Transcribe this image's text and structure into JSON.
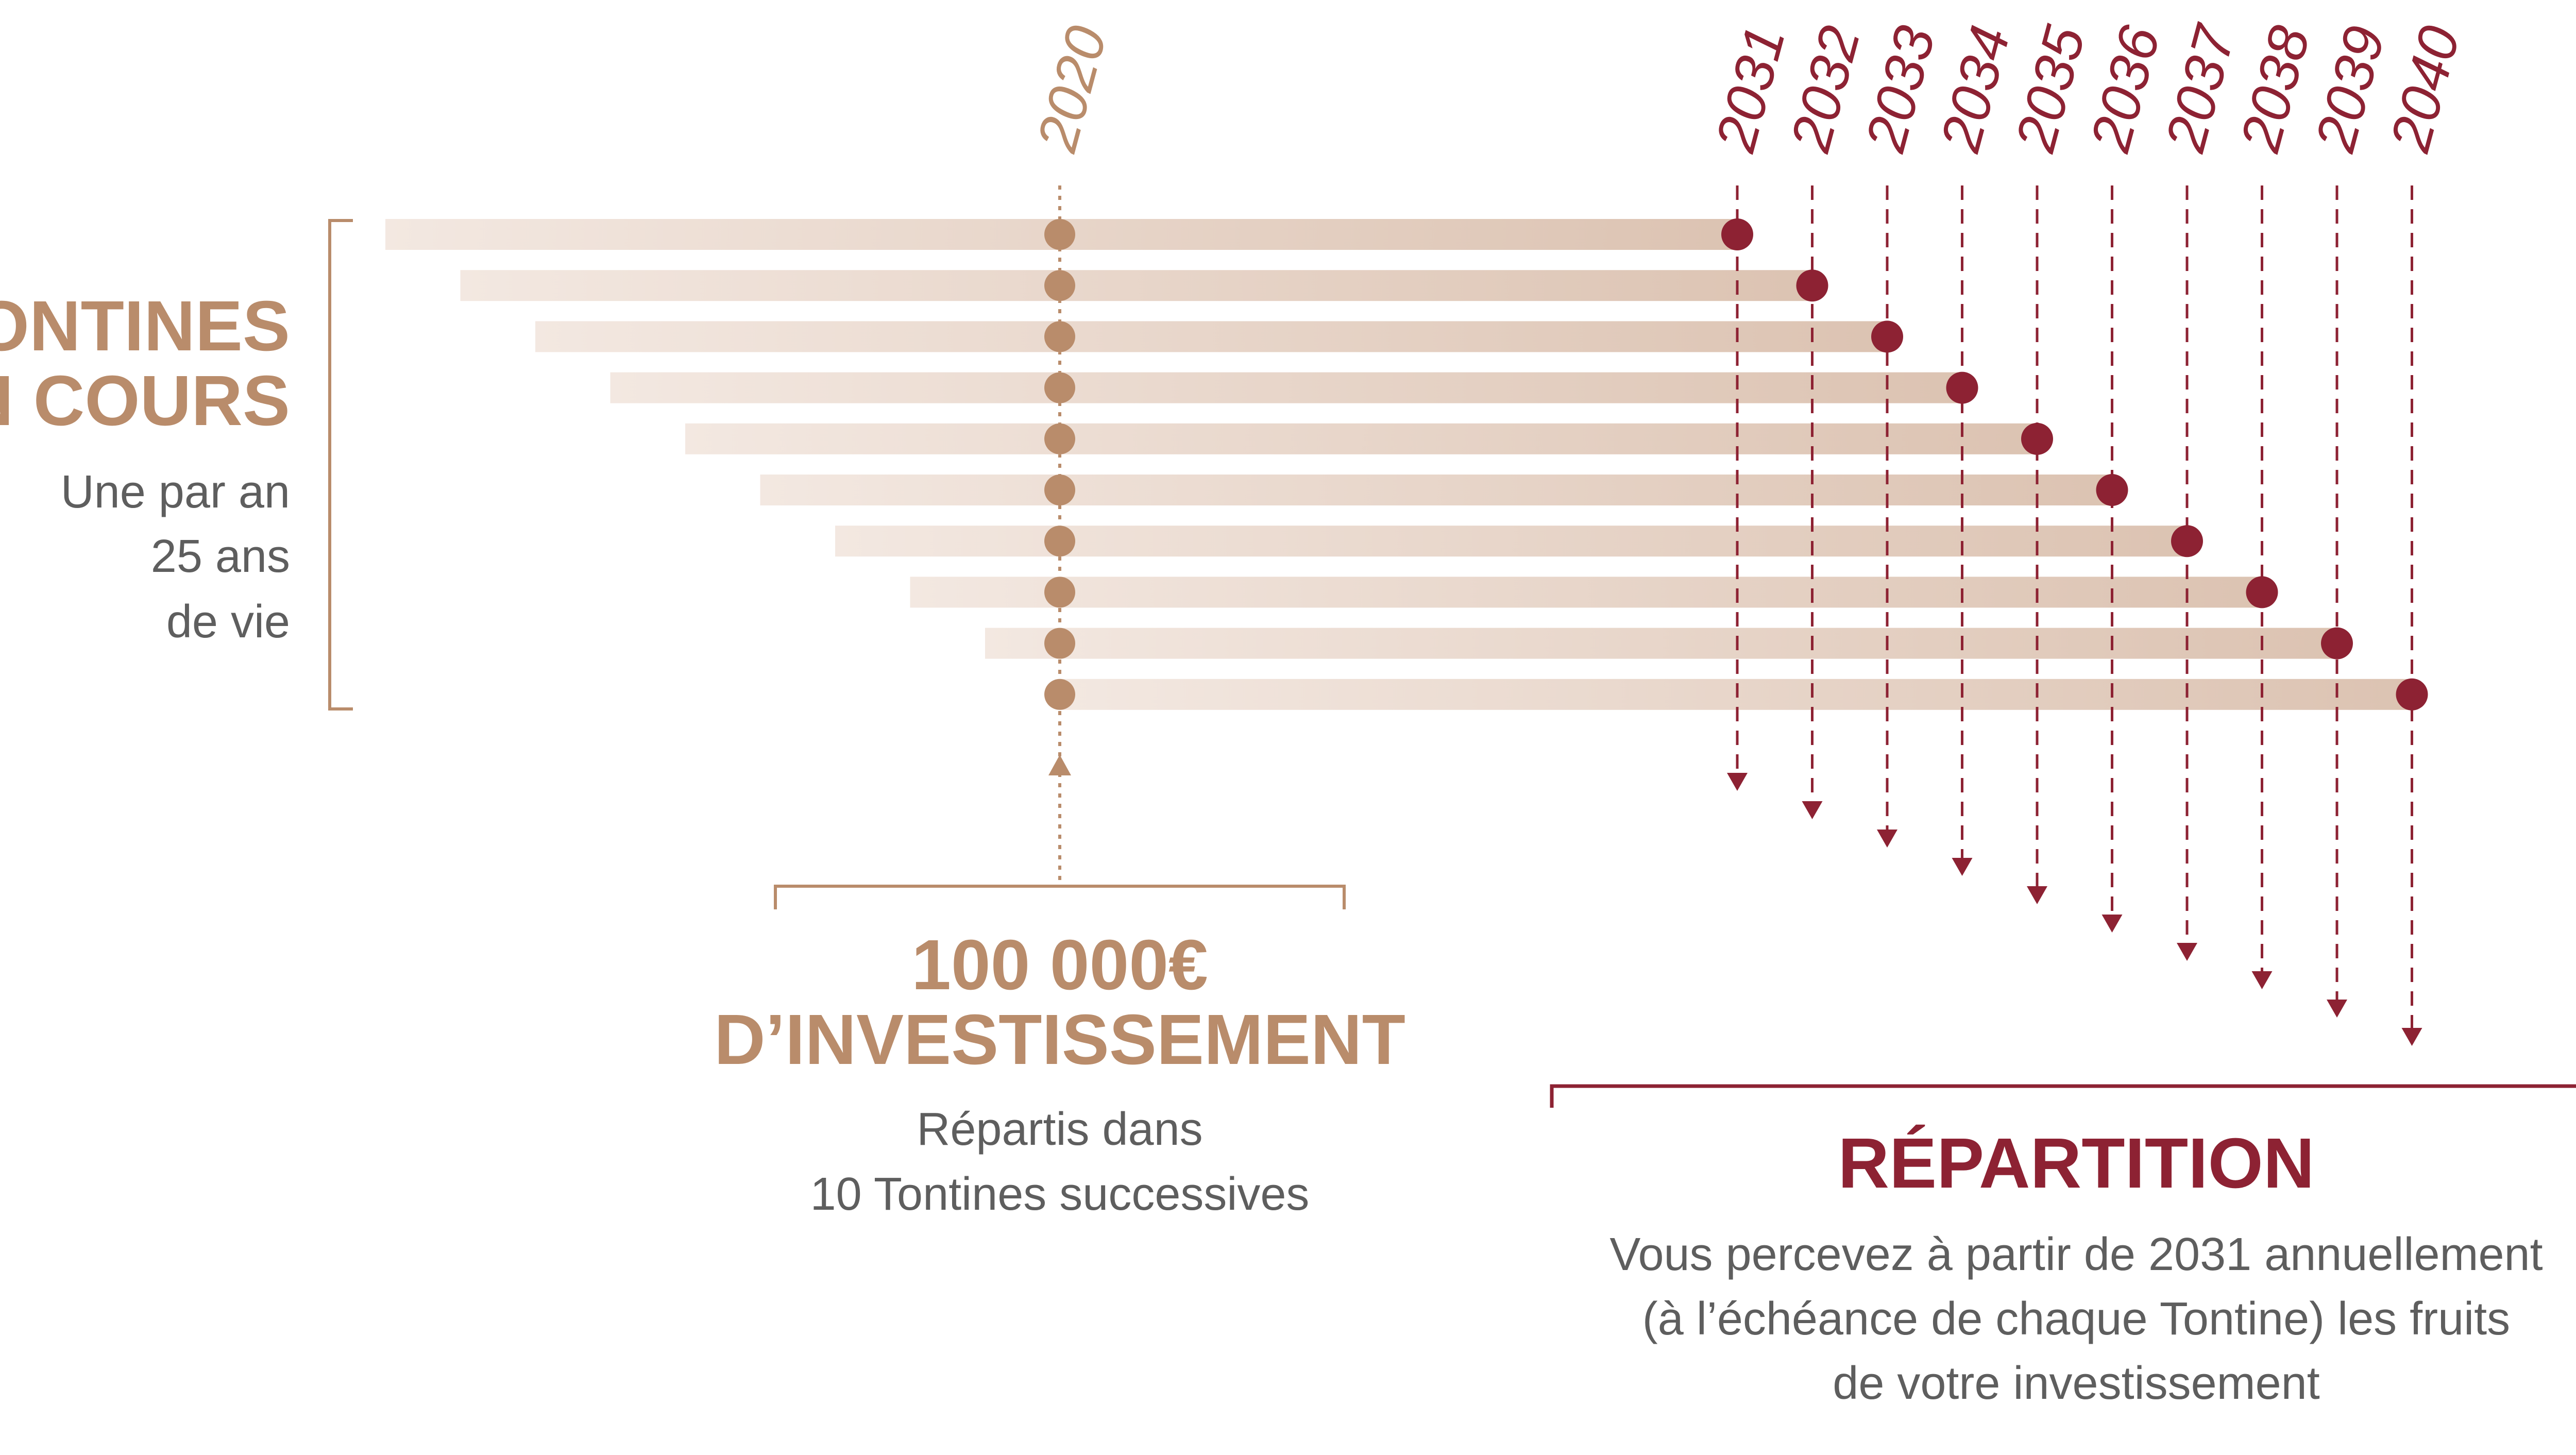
{
  "colors": {
    "tan": "#b98c6b",
    "maroon": "#8d2233",
    "gray": "#5e5e5e",
    "bar_start": "#f3e8e1",
    "bar_end": "#dcc3b2"
  },
  "start_year_label": "2020",
  "years": [
    "2031",
    "2032",
    "2033",
    "2034",
    "2035",
    "2036",
    "2037",
    "2038",
    "2039",
    "2040"
  ],
  "left_panel": {
    "title_line1": "TONTINES",
    "title_line2": "EN COURS",
    "sub_line1": "Une par an",
    "sub_line2": "25 ans",
    "sub_line3": "de vie"
  },
  "invest_panel": {
    "title_line1": "100 000€",
    "title_line2": "D’INVESTISSEMENT",
    "sub_line1": "Répartis dans",
    "sub_line2": "10 Tontines successives"
  },
  "repartition_panel": {
    "title": "RÉPARTITION",
    "sub_line1": "Vous percevez à partir de 2031 annuellement",
    "sub_line2": "(à l’échéance de chaque Tontine) les fruits",
    "sub_line3": "de votre investissement"
  }
}
